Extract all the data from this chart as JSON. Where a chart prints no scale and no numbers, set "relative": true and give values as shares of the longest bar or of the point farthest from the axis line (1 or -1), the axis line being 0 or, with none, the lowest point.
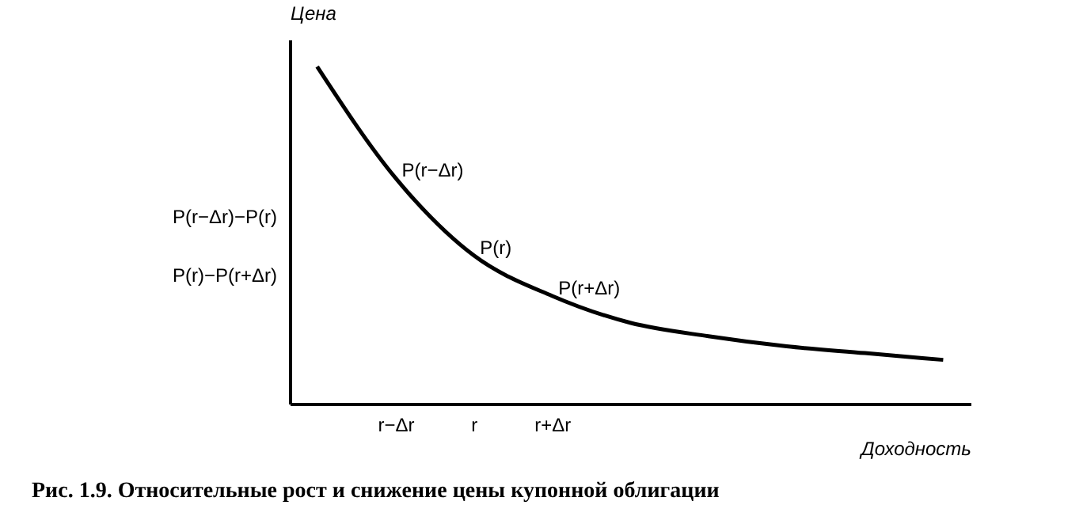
{
  "chart_data": {
    "type": "line",
    "relative": true,
    "title": "Рис. 1.9. Относительные рост и снижение цены купонной облигации",
    "xlabel": "Доходность",
    "ylabel": "Цена",
    "categories": [
      null,
      "r−Δr",
      "r",
      "r+Δr",
      null,
      null,
      null,
      null,
      null
    ],
    "series": [
      {
        "color": "#000000",
        "values": [
          1,
          0.67,
          0.44,
          0.32,
          0.24,
          0.2,
          0.17,
          0.15,
          0.13
        ]
      }
    ],
    "annotations": [
      {
        "text": "P(r−Δr)",
        "x": "r−Δr",
        "y": 0.67
      },
      {
        "text": "P(r)",
        "x": "r",
        "y": 0.44
      },
      {
        "text": "P(r+Δr)",
        "x": "r+Δr",
        "y": 0.32
      },
      "P(r−Δr)−P(r)",
      "P(r)−P(r+Δr)"
    ],
    "grid": false,
    "marker": "none",
    "line_style": "solid"
  }
}
